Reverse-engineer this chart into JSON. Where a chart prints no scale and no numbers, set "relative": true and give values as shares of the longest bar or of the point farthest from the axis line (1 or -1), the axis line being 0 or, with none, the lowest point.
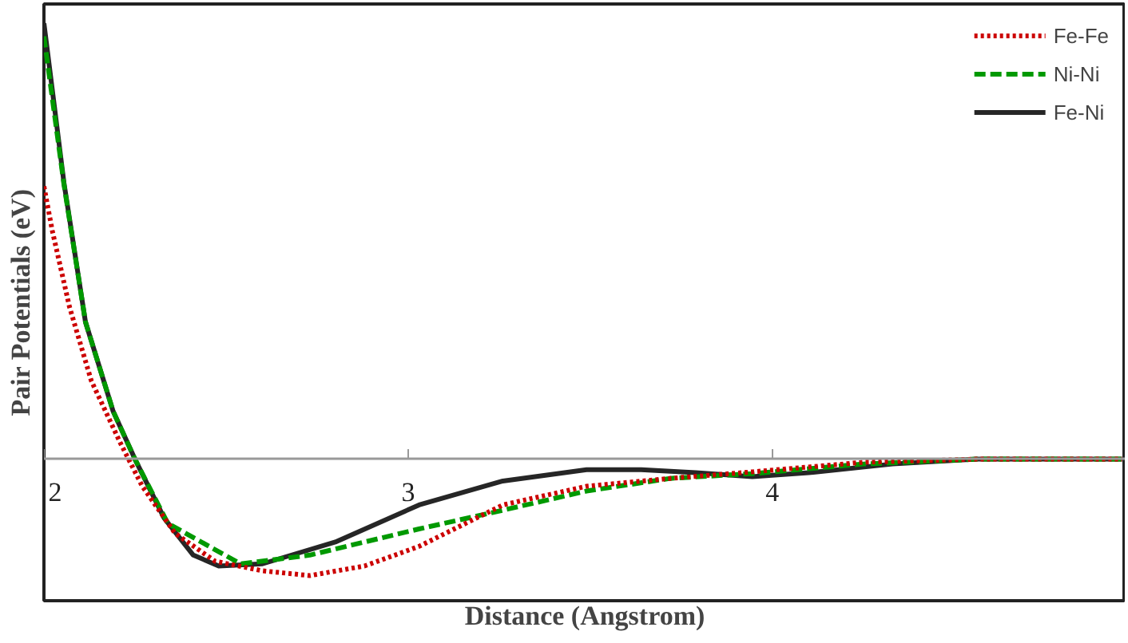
{
  "chart_data": {
    "type": "line",
    "relative": true,
    "xlabel": "Distance (Angstrom)",
    "ylabel": "Pair Potentials (eV)",
    "xlim": [
      2,
      4.97
    ],
    "xticks": [
      2,
      3,
      4
    ],
    "grid": false,
    "legend": "top right",
    "series": [
      {
        "name": "Fe-Fe",
        "color": "#cc0000",
        "line_style": "dotted",
        "x": [
          2,
          2.023,
          2.07,
          2.13,
          2.21,
          2.27,
          2.36,
          2.47,
          2.6,
          2.73,
          2.88,
          3.03,
          3.26,
          3.49,
          3.72,
          3.945,
          4.25,
          4.56,
          4.96
        ],
        "values": [
          0.626,
          0.524,
          0.35,
          0.18,
          0.037,
          -0.062,
          -0.17,
          -0.234,
          -0.256,
          -0.267,
          -0.245,
          -0.2,
          -0.105,
          -0.062,
          -0.044,
          -0.029,
          -0.007,
          0,
          0
        ]
      },
      {
        "name": "Ni-Ni",
        "color": "#009900",
        "line_style": "dashed",
        "x": [
          2,
          2.055,
          2.114,
          2.19,
          2.25,
          2.34,
          2.54,
          2.73,
          2.88,
          3.03,
          3.26,
          3.49,
          3.72,
          3.945,
          4.25,
          4.56,
          4.96
        ],
        "values": [
          0.97,
          0.63,
          0.315,
          0.11,
          0,
          -0.147,
          -0.24,
          -0.22,
          -0.19,
          -0.16,
          -0.117,
          -0.073,
          -0.044,
          -0.033,
          -0.011,
          0,
          0
        ]
      },
      {
        "name": "Fe-Ni",
        "color": "#262626",
        "line_style": "solid",
        "x": [
          2,
          2.055,
          2.114,
          2.19,
          2.25,
          2.33,
          2.41,
          2.48,
          2.6,
          2.8,
          3.03,
          3.26,
          3.49,
          3.64,
          3.79,
          3.945,
          4.1,
          4.33,
          4.56,
          4.96
        ],
        "values": [
          1.0,
          0.634,
          0.315,
          0.11,
          0,
          -0.135,
          -0.22,
          -0.245,
          -0.24,
          -0.19,
          -0.105,
          -0.05,
          -0.024,
          -0.024,
          -0.031,
          -0.04,
          -0.031,
          -0.011,
          0,
          0
        ]
      }
    ]
  }
}
